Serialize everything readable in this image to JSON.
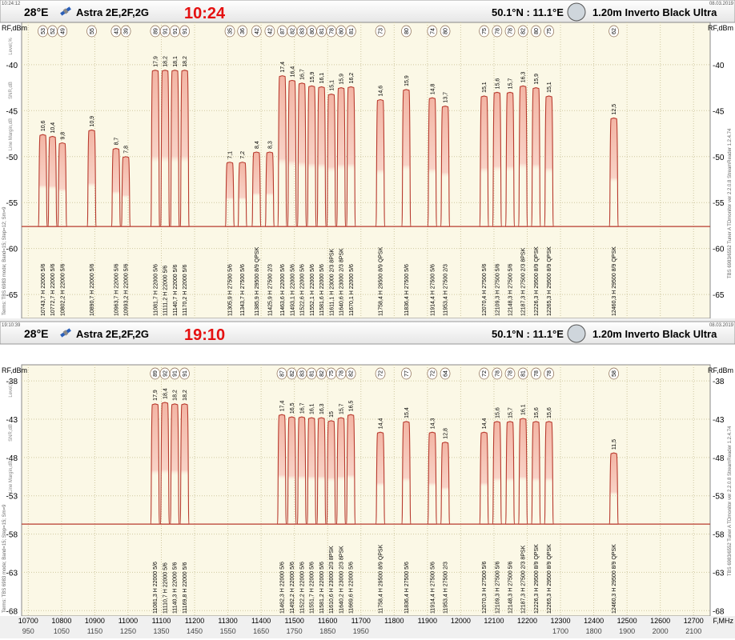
{
  "chart_data": [
    {
      "type": "line",
      "small_time": "10:24:12",
      "date": "08.03.2019",
      "orbit": "28°E",
      "satellite": "Astra 2E,2F,2G",
      "time": "10:24",
      "location": "50.1°N : 11.1°E",
      "dish": "1.20m  Inverto Black Ultra",
      "ylabel": "RF,dBm",
      "xlabel": "F,MHz",
      "side_left": "Terms:  TBS 6983 mode; Band=15; Step=12; Sm=9",
      "side_right": "TBS 6983/6552 Tuner A    TDmonitor  ver 2.2.0.8   StreamReader 1.2.4.74",
      "legend_left": [
        "Level,%",
        "SNR,dB",
        "Line Margin,dB"
      ],
      "xlim": [
        10680,
        12750
      ],
      "ylim": [
        -35.4,
        -67.6
      ],
      "xticks": [
        10700,
        10800,
        10900,
        11000,
        11100,
        11200,
        11300,
        11400,
        11500,
        11600,
        11700,
        11800,
        11900,
        12000,
        12100,
        12200,
        12300,
        12400,
        12500,
        12600,
        12700
      ],
      "if_ticks": [
        {
          "value": 10700,
          "label": "950"
        },
        {
          "value": 10800,
          "label": "1050"
        },
        {
          "value": 10900,
          "label": "1150"
        },
        {
          "value": 11000,
          "label": "1250"
        },
        {
          "value": 11100,
          "label": "1350"
        },
        {
          "value": 11200,
          "label": "1450"
        },
        {
          "value": 11300,
          "label": "1550"
        },
        {
          "value": 11400,
          "label": "1650"
        },
        {
          "value": 11500,
          "label": "1750"
        },
        {
          "value": 11600,
          "label": "1850"
        },
        {
          "value": 11700,
          "label": "1950"
        },
        {
          "value": 12300,
          "label": "1700"
        },
        {
          "value": 12400,
          "label": "1800"
        },
        {
          "value": 12500,
          "label": "1900"
        },
        {
          "value": 12600,
          "label": "2000"
        },
        {
          "value": 12700,
          "label": "2100"
        }
      ],
      "yticks": [
        -40,
        -45,
        -50,
        -55,
        -60,
        -65
      ],
      "noise_floor": -57.6,
      "transponders": {
        "freq": [
          10743.7,
          10772.7,
          10802.2,
          10890.7,
          10963.7,
          10993.2,
          11081.7,
          11111.2,
          11140.7,
          11170.2,
          11305.9,
          11343.7,
          11385.9,
          11425.9,
          11463.6,
          11493.1,
          11522.6,
          11552.1,
          11581.6,
          11611.1,
          11640.6,
          11670.1,
          11758.4,
          11836.4,
          11914.4,
          11953.4,
          12070.4,
          12109.3,
          12148.3,
          12187.3,
          12226.3,
          12265.3,
          12460.3
        ],
        "level": [
          -47.6,
          -47.8,
          -48.5,
          -47.1,
          -49.1,
          -50,
          -40.6,
          -40.6,
          -40.6,
          -40.6,
          -50.6,
          -50.6,
          -49.5,
          -49.5,
          -41.2,
          -41.7,
          -42,
          -42.3,
          -42.4,
          -43.2,
          -42.5,
          -42.4,
          -43.8,
          -42.7,
          -43.6,
          -44.5,
          -43.4,
          -43,
          -43,
          -42.3,
          -42.5,
          -43.4,
          -45.8
        ],
        "snr": [
          10.6,
          10.4,
          9.8,
          10.9,
          8.7,
          7.8,
          17.9,
          18.2,
          18.1,
          18.2,
          7.1,
          7.2,
          8.4,
          8.3,
          17.4,
          16.4,
          16.7,
          15.9,
          16.1,
          15.1,
          15.9,
          16.2,
          14.6,
          15.9,
          14.8,
          13.7,
          15.1,
          15.6,
          15.7,
          16.3,
          15.9,
          15.1,
          12.5
        ],
        "snr_labels": [
          "10,6",
          "10,4",
          "9,8",
          "10,9",
          "8,7",
          "7,8",
          "17,9",
          "18,2",
          "18,1",
          "18,2",
          "7,1",
          "7,2",
          "8,4",
          "8,3",
          "17,4",
          "16,4",
          "16,7",
          "15,9",
          "16,1",
          "15,1",
          "15,9",
          "16,2",
          "14,6",
          "15,9",
          "14,8",
          "13,7",
          "15,1",
          "15,6",
          "15,7",
          "16,3",
          "15,9",
          "15,1",
          "12,5"
        ],
        "quality": [
          53,
          52,
          49,
          55,
          43,
          39,
          89,
          91,
          91,
          91,
          35,
          36,
          42,
          42,
          87,
          82,
          83,
          80,
          81,
          78,
          80,
          81,
          73,
          80,
          74,
          80,
          75,
          78,
          78,
          82,
          80,
          75,
          62
        ],
        "label": [
          "10743,7 H  22000 5/6",
          "10772,7 H  22000 5/6",
          "10802,2 H  22000 5/6",
          "10890,7 H  22000 5/6",
          "10963,7 H  22000 5/6",
          "10993,2 H  22000 5/6",
          "11081,7 H  22000 5/6",
          "11111,2 H  22000 5/6",
          "11140,7 H  22000 5/6",
          "11170,2 H  22000 5/6",
          "11305,9 H  27500 5/6",
          "11343,7 H  27500 5/6",
          "11385,9 H  29500 8/9  QPSK",
          "11425,9 H  27500 2/3",
          "11463,6 H  22000 5/6",
          "11493,1 H  22000 5/6",
          "11522,6 H  22000 5/6",
          "11552,1 H  22000 5/6",
          "11581,6 H  22000 5/6",
          "11611,1 H  23000 2/3  8PSK",
          "11640,6 H  23000 2/3  8PSK",
          "11670,1 H  22000 5/6",
          "11758,4 H  29500 8/9  QPSK",
          "11836,4 H  27500 5/6",
          "11914,4 H  27500 5/6",
          "11953,4 H  27500 2/3",
          "12070,4 H  27500 5/6",
          "12109,3 H  27500 5/6",
          "12148,3 H  27500 5/6",
          "12187,3 H  27500 2/3  8PSK",
          "12226,3 H  29500 8/9  QPSK",
          "12265,3 H  29500 8/9  QPSK",
          "12460,3 H  29500 8/9  QPSK"
        ]
      }
    },
    {
      "type": "line",
      "small_time": "19:10:39",
      "date": "08.03.2019",
      "orbit": "28°E",
      "satellite": "Astra 2E,2F,2G",
      "time": "19:10",
      "location": "50.1°N : 11.1°E",
      "dish": "1.20m  Inverto Black Ultra",
      "ylabel": "RF,dBm",
      "xlabel": "F,MHz",
      "side_left": "Terms:  TBS 6983 mode; Band=15; Step=15; Sm=9",
      "side_right": "TBS 6983/6552 Tuner A    TDmonitor  ver 2.2.0.8   StreamReader 1.2.4.74",
      "legend_left": [
        "Level,%",
        "SNR,dB",
        "Line Margin,dB"
      ],
      "xlim": [
        10680,
        12750
      ],
      "ylim": [
        -35.9,
        -68.7
      ],
      "xticks": [
        10700,
        10800,
        10900,
        11000,
        11100,
        11200,
        11300,
        11400,
        11500,
        11600,
        11700,
        11800,
        11900,
        12000,
        12100,
        12200,
        12300,
        12400,
        12500,
        12600,
        12700
      ],
      "if_ticks": [
        {
          "value": 10700,
          "label": "950"
        },
        {
          "value": 10800,
          "label": "1050"
        },
        {
          "value": 10900,
          "label": "1150"
        },
        {
          "value": 11000,
          "label": "1250"
        },
        {
          "value": 11100,
          "label": "1350"
        },
        {
          "value": 11200,
          "label": "1450"
        },
        {
          "value": 11300,
          "label": "1550"
        },
        {
          "value": 11400,
          "label": "1650"
        },
        {
          "value": 11500,
          "label": "1750"
        },
        {
          "value": 11600,
          "label": "1850"
        },
        {
          "value": 11700,
          "label": "1950"
        },
        {
          "value": 12300,
          "label": "1700"
        },
        {
          "value": 12400,
          "label": "1800"
        },
        {
          "value": 12500,
          "label": "1900"
        },
        {
          "value": 12600,
          "label": "2000"
        },
        {
          "value": 12700,
          "label": "2100"
        }
      ],
      "yticks": [
        -38,
        -43,
        -48,
        -53,
        -58,
        -63,
        -68
      ],
      "noise_floor": -56.7,
      "transponders": {
        "freq": [
          11081.3,
          11110.7,
          11140.3,
          11169.8,
          11462.3,
          11492.2,
          11522.2,
          11551.7,
          11581.2,
          11610.6,
          11640.2,
          11669.6,
          11758.4,
          11836.4,
          11914.4,
          11953.4,
          12070.3,
          12109.3,
          12148.3,
          12187.3,
          12226.3,
          12265.3,
          12460.3
        ],
        "level": [
          -41,
          -40.8,
          -41,
          -41,
          -42.4,
          -42.7,
          -42.7,
          -42.8,
          -42.8,
          -43.2,
          -42.8,
          -42.4,
          -44.7,
          -43.3,
          -44.7,
          -46,
          -44.7,
          -43.3,
          -43.3,
          -42.9,
          -43.3,
          -43.3,
          -47.4
        ],
        "snr": [
          17.9,
          18.4,
          18.2,
          18.2,
          17.4,
          16.5,
          16.7,
          16.1,
          16.3,
          15,
          15.7,
          16.5,
          14.4,
          15.4,
          14.3,
          12.8,
          14.4,
          15.6,
          15.7,
          16.1,
          15.6,
          15.6,
          11.5
        ],
        "snr_labels": [
          "17,9",
          "18,4",
          "18,2",
          "18,2",
          "17,4",
          "16,5",
          "16,7",
          "16,1",
          "16,3",
          "15",
          "15,7",
          "16,5",
          "14,4",
          "15,4",
          "14,3",
          "12,8",
          "14,4",
          "15,6",
          "15,7",
          "16,1",
          "15,6",
          "15,6",
          "11,5"
        ],
        "quality": [
          89,
          92,
          91,
          91,
          87,
          82,
          83,
          81,
          82,
          75,
          78,
          82,
          72,
          77,
          72,
          64,
          72,
          78,
          78,
          81,
          78,
          78,
          58
        ],
        "label": [
          "11081,3 H  22000 5/6",
          "11110,7 H  22000 5/6",
          "11140,3 H  22000 5/6",
          "11169,8 H  22000 5/6",
          "11462,3 H  22000 5/6",
          "11492,2 H  22000 5/6",
          "11522,2 H  22000 5/6",
          "11551,7 H  22000 5/6",
          "11581,2 H  22000 5/6",
          "11610,6 H  23000 2/3  8PSK",
          "11640,2 H  23000 2/3  8PSK",
          "11669,6 H  22000 5/6",
          "11758,4 H  29500 8/9  QPSK",
          "11836,4 H  27500 5/6",
          "11914,4 H  27500 5/6",
          "11953,4 H  27500 2/3",
          "12070,3 H  27500 5/6",
          "12109,3 H  27500 5/6",
          "12148,3 H  27500 5/6",
          "12187,3 H  27500 2/3  8PSK",
          "12226,3 H  29500 8/9  QPSK",
          "12265,3 H  29500 8/9  QPSK",
          "12460,3 H  29500 8/9  QPSK"
        ]
      }
    }
  ]
}
